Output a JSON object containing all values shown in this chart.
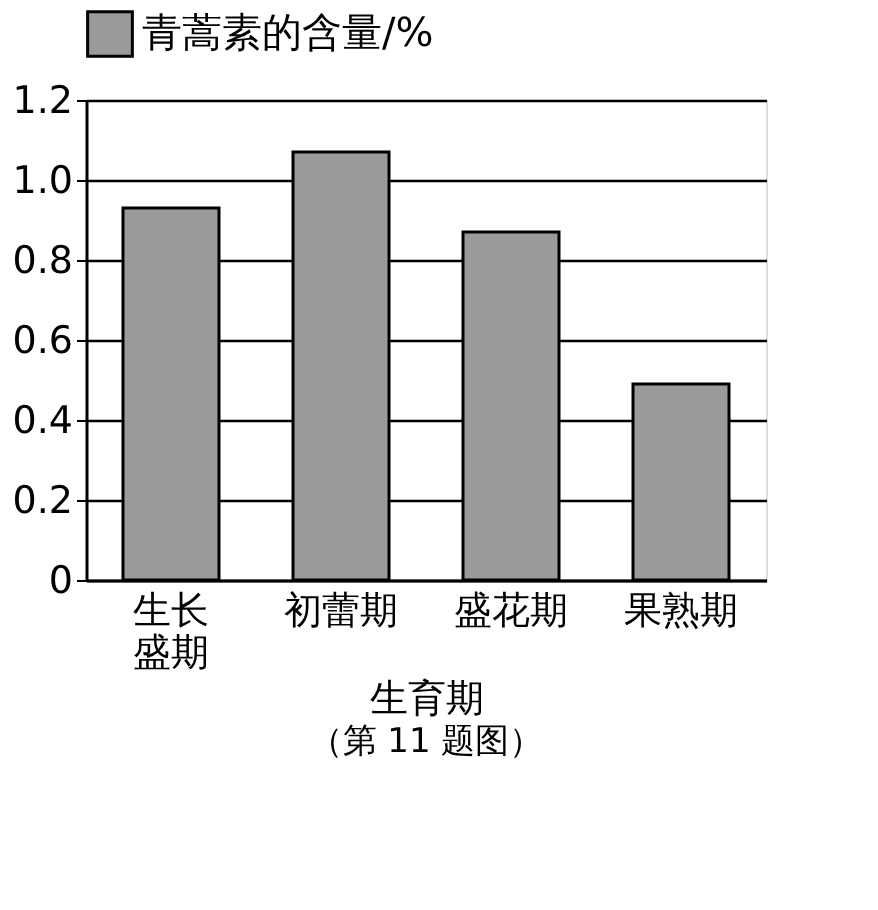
{
  "chart_data": {
    "type": "bar",
    "xlabel": "生育期",
    "categories": [
      "生长盛期",
      "初蕾期",
      "盛花期",
      "果熟期"
    ],
    "series": [
      {
        "name": "青蒿素的含量/%",
        "color": "#9a9a9a",
        "values": [
          0.93,
          1.07,
          0.87,
          0.49
        ]
      }
    ],
    "ylim": [
      0,
      1.2
    ],
    "yticks": [
      0,
      {
        "value": 0.2,
        "label": "0.2"
      },
      {
        "value": 0.4,
        "label": "0.4"
      },
      {
        "value": 0.6,
        "label": "0.6"
      },
      {
        "value": 0.8,
        "label": "0.8"
      },
      {
        "value": 1.0,
        "label": "1.0"
      },
      {
        "value": 1.2,
        "label": "1.2"
      }
    ],
    "grid": "y",
    "legend": "top",
    "annotations": [
      "（第 11 题图）"
    ]
  }
}
